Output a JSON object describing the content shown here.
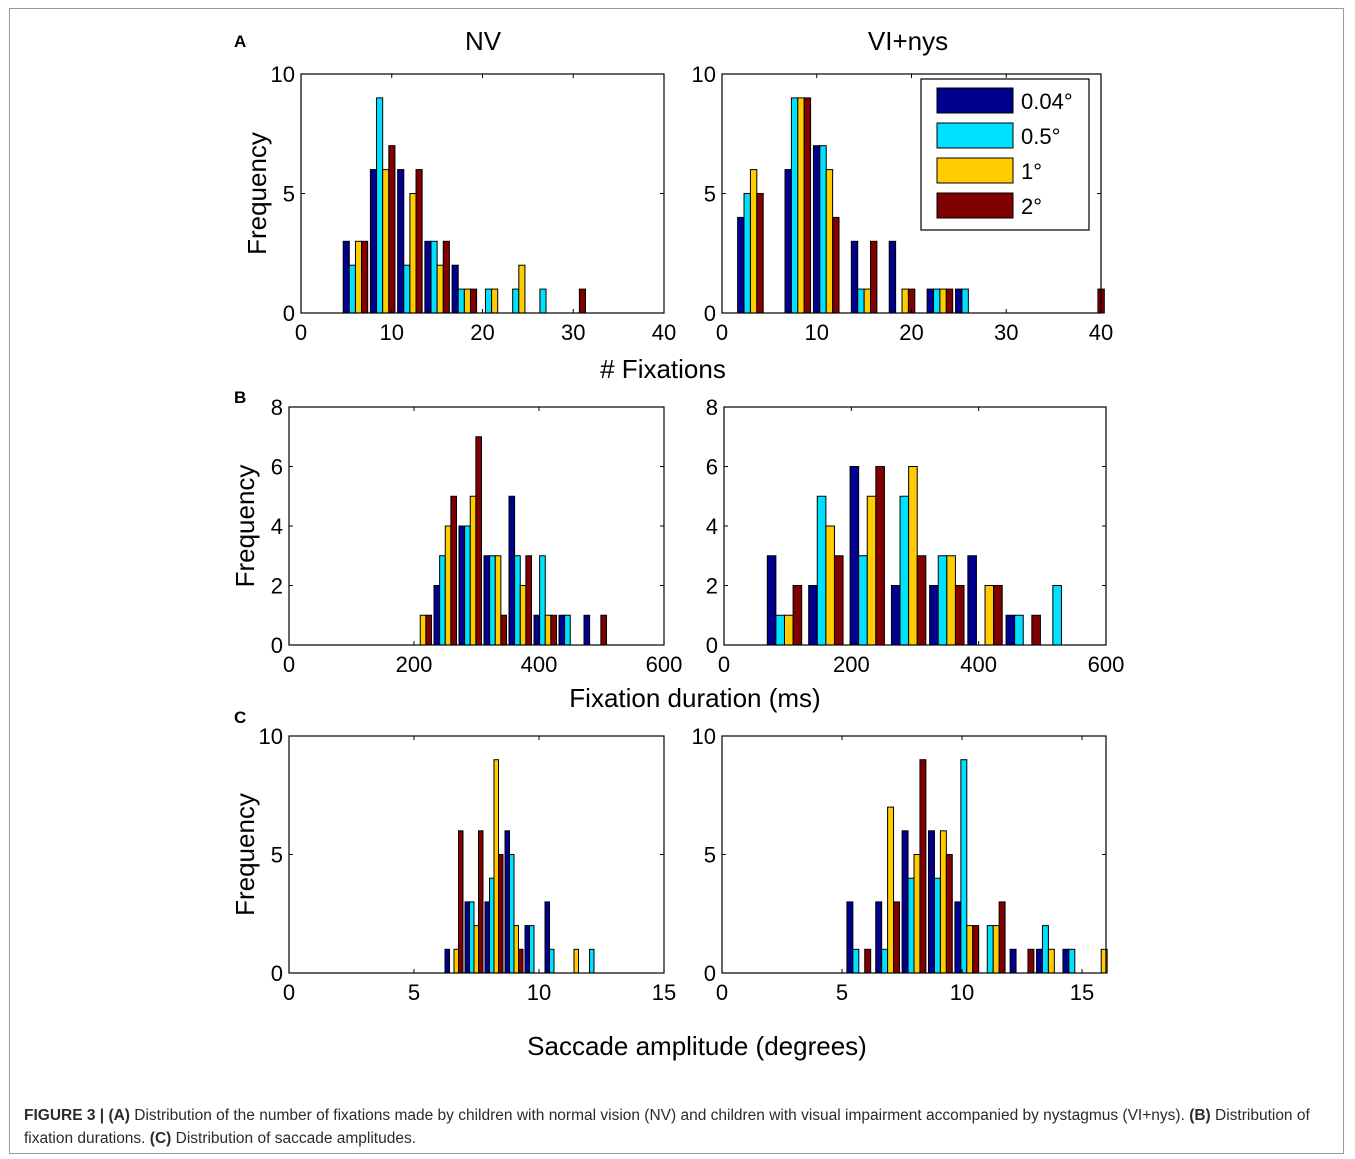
{
  "figure": {
    "col_titles": [
      "NV",
      "VI+nys"
    ],
    "xlabel_row_a": "# Fixations",
    "xlabel_row_b": "Fixation duration (ms)",
    "xlabel_row_c": "Saccade amplitude (degrees)"
  },
  "caption": {
    "lead": "FIGURE 3 |",
    "a_label": "(A)",
    "a_text": " Distribution of the number of fixations made by children with normal vision (NV) and children with visual impairment accompanied by nystagmus (VI+nys). ",
    "b_label": "(B)",
    "b_text": " Distribution of fixation durations. ",
    "c_label": "(C)",
    "c_text": " Distribution of saccade amplitudes."
  },
  "colors": {
    "s0": "#00008f",
    "s1": "#00e0ff",
    "s2": "#ffcc00",
    "s3": "#800000"
  },
  "chart_data": [
    {
      "type": "bar",
      "panel": "A",
      "title": "NV",
      "xlabel": "",
      "ylabel": "Frequency",
      "xlim": [
        0,
        40
      ],
      "ylim": [
        0,
        10
      ],
      "xticks": [
        0,
        10,
        20,
        30,
        40
      ],
      "yticks": [
        0,
        5,
        10
      ],
      "bin_centers": [
        6,
        9,
        12,
        15,
        18,
        21,
        24,
        27,
        30
      ],
      "series": [
        {
          "name": "0.04°",
          "values": [
            3,
            6,
            6,
            3,
            2,
            0,
            0,
            0,
            0
          ]
        },
        {
          "name": "0.5°",
          "values": [
            2,
            9,
            2,
            3,
            1,
            1,
            1,
            1,
            0
          ]
        },
        {
          "name": "1°",
          "values": [
            3,
            6,
            5,
            2,
            1,
            1,
            2,
            0,
            0
          ]
        },
        {
          "name": "2°",
          "values": [
            3,
            7,
            6,
            3,
            1,
            0,
            0,
            0,
            1
          ]
        }
      ]
    },
    {
      "type": "bar",
      "panel": "A",
      "title": "VI+nys",
      "xlabel": "",
      "ylabel": "",
      "xlim": [
        0,
        40
      ],
      "ylim": [
        0,
        10
      ],
      "xticks": [
        0,
        10,
        20,
        30,
        40
      ],
      "yticks": [
        0,
        5,
        10
      ],
      "legend": "top-right",
      "bin_centers": [
        3,
        8,
        11,
        15,
        19,
        23,
        26,
        39
      ],
      "series": [
        {
          "name": "0.04°",
          "values": [
            4,
            6,
            7,
            3,
            3,
            1,
            1,
            0
          ]
        },
        {
          "name": "0.5°",
          "values": [
            5,
            9,
            7,
            1,
            0,
            1,
            1,
            0
          ]
        },
        {
          "name": "1°",
          "values": [
            6,
            9,
            6,
            1,
            1,
            1,
            0,
            0
          ]
        },
        {
          "name": "2°",
          "values": [
            5,
            9,
            4,
            3,
            1,
            1,
            0,
            1
          ]
        }
      ]
    },
    {
      "type": "bar",
      "panel": "B",
      "title": "",
      "xlabel": "",
      "ylabel": "Frequency",
      "xlim": [
        0,
        600
      ],
      "ylim": [
        0,
        8
      ],
      "xticks": [
        0,
        200,
        400,
        600
      ],
      "yticks": [
        0,
        2,
        4,
        6,
        8
      ],
      "bin_centers": [
        210,
        250,
        290,
        330,
        370,
        410,
        450,
        490
      ],
      "series": [
        {
          "name": "0.04°",
          "values": [
            0,
            2,
            4,
            3,
            5,
            1,
            1,
            1
          ]
        },
        {
          "name": "0.5°",
          "values": [
            0,
            3,
            4,
            3,
            3,
            3,
            1,
            0
          ]
        },
        {
          "name": "1°",
          "values": [
            1,
            4,
            5,
            3,
            2,
            1,
            0,
            0
          ]
        },
        {
          "name": "2°",
          "values": [
            1,
            5,
            7,
            1,
            3,
            1,
            0,
            1
          ]
        }
      ]
    },
    {
      "type": "bar",
      "panel": "B",
      "title": "",
      "xlabel": "",
      "ylabel": "",
      "xlim": [
        0,
        600
      ],
      "ylim": [
        0,
        8
      ],
      "xticks": [
        0,
        200,
        400,
        600
      ],
      "yticks": [
        0,
        2,
        4,
        6,
        8
      ],
      "bin_centers": [
        95,
        160,
        225,
        290,
        350,
        410,
        470,
        530
      ],
      "series": [
        {
          "name": "0.04°",
          "values": [
            3,
            2,
            6,
            2,
            2,
            3,
            1,
            0
          ]
        },
        {
          "name": "0.5°",
          "values": [
            1,
            5,
            3,
            5,
            3,
            0,
            1,
            2
          ]
        },
        {
          "name": "1°",
          "values": [
            1,
            4,
            5,
            6,
            3,
            2,
            0,
            0
          ]
        },
        {
          "name": "2°",
          "values": [
            2,
            3,
            6,
            3,
            2,
            2,
            1,
            0
          ]
        }
      ]
    },
    {
      "type": "bar",
      "panel": "C",
      "title": "",
      "xlabel": "",
      "ylabel": "Frequency",
      "xlim": [
        0,
        15
      ],
      "ylim": [
        0,
        10
      ],
      "xticks": [
        0,
        5,
        10,
        15
      ],
      "yticks": [
        0,
        5,
        10
      ],
      "bin_centers": [
        6.6,
        7.4,
        8.2,
        9.0,
        9.8,
        10.6,
        11.4,
        12.2
      ],
      "series": [
        {
          "name": "0.04°",
          "values": [
            1,
            3,
            3,
            6,
            2,
            3,
            0,
            0
          ]
        },
        {
          "name": "0.5°",
          "values": [
            0,
            3,
            4,
            5,
            2,
            1,
            0,
            1
          ]
        },
        {
          "name": "1°",
          "values": [
            1,
            2,
            9,
            2,
            0,
            0,
            1,
            0
          ]
        },
        {
          "name": "2°",
          "values": [
            6,
            6,
            5,
            1,
            0,
            0,
            0,
            0
          ]
        }
      ]
    },
    {
      "type": "bar",
      "panel": "C",
      "title": "",
      "xlabel": "",
      "ylabel": "",
      "xlim": [
        0,
        16
      ],
      "ylim": [
        0,
        10
      ],
      "xticks": [
        0,
        5,
        10,
        15
      ],
      "yticks": [
        0,
        5,
        10
      ],
      "bin_centers": [
        5.7,
        6.9,
        8.0,
        9.1,
        10.2,
        11.3,
        12.5,
        13.6,
        14.7,
        15.8
      ],
      "series": [
        {
          "name": "0.04°",
          "values": [
            3,
            3,
            6,
            6,
            3,
            0,
            1,
            1,
            1,
            0
          ]
        },
        {
          "name": "0.5°",
          "values": [
            1,
            1,
            4,
            4,
            9,
            2,
            0,
            2,
            1,
            0
          ]
        },
        {
          "name": "1°",
          "values": [
            0,
            7,
            5,
            6,
            2,
            2,
            0,
            1,
            0,
            1
          ]
        },
        {
          "name": "2°",
          "values": [
            1,
            3,
            9,
            5,
            2,
            3,
            1,
            0,
            0,
            0
          ]
        }
      ]
    }
  ]
}
